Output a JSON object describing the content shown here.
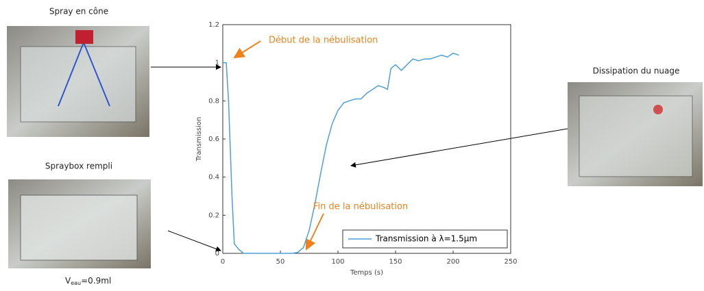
{
  "chart_data": {
    "type": "line",
    "x_label": "Temps (s)",
    "y_label": "Transmission",
    "xlim": [
      0,
      250
    ],
    "xticks": [
      0,
      50,
      100,
      150,
      200,
      250
    ],
    "ylim": [
      0,
      1.2
    ],
    "yticks": [
      0,
      0.2,
      0.4,
      0.6,
      0.8,
      1,
      1.2
    ],
    "legend": "bottom-right",
    "annotations": [
      {
        "text": "Début de la nébulisation",
        "color": "#f0821e"
      },
      {
        "text": "Fin de la nébulisation",
        "color": "#f0821e"
      }
    ],
    "series": [
      {
        "name": "Transmission à λ=1.5µm",
        "color": "#4d9fd8",
        "x": [
          0,
          3,
          5,
          8,
          10,
          14,
          18,
          30,
          45,
          60,
          65,
          70,
          75,
          80,
          85,
          90,
          95,
          100,
          105,
          110,
          115,
          120,
          125,
          130,
          135,
          140,
          143,
          146,
          150,
          155,
          160,
          165,
          170,
          175,
          180,
          185,
          190,
          195,
          200,
          205
        ],
        "values": [
          1,
          1,
          0.8,
          0.3,
          0.05,
          0.02,
          0,
          0,
          0,
          0,
          0.005,
          0.03,
          0.12,
          0.26,
          0.42,
          0.57,
          0.68,
          0.75,
          0.79,
          0.8,
          0.81,
          0.81,
          0.84,
          0.86,
          0.88,
          0.87,
          0.86,
          0.97,
          0.99,
          0.96,
          0.99,
          1.02,
          1.01,
          1.02,
          1.02,
          1.03,
          1.04,
          1.03,
          1.05,
          1.04
        ]
      }
    ]
  },
  "photos": [
    {
      "caption": "Spray en cône"
    },
    {
      "caption": "Spraybox rempli"
    },
    {
      "caption": "Dissipation du nuage"
    }
  ],
  "volume_label": {
    "main": "V",
    "sub": "eau",
    "rest": "=0.9ml"
  }
}
